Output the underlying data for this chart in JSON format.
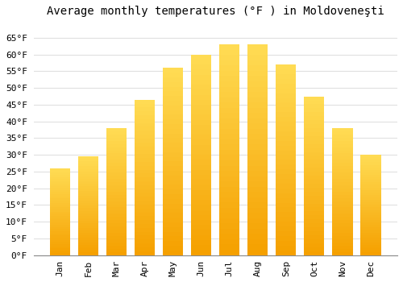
{
  "months": [
    "Jan",
    "Feb",
    "Mar",
    "Apr",
    "May",
    "Jun",
    "Jul",
    "Aug",
    "Sep",
    "Oct",
    "Nov",
    "Dec"
  ],
  "temperatures": [
    26,
    29.5,
    38,
    46.5,
    56,
    60,
    63,
    63,
    57,
    47.5,
    38,
    30
  ],
  "bar_color_top": "#FFDD88",
  "bar_color_mid": "#FFBB22",
  "bar_color_bot": "#F5A000",
  "title": "Average monthly temperatures (°F ) in Moldoveneşti",
  "ylim": [
    0,
    70
  ],
  "yticks": [
    0,
    5,
    10,
    15,
    20,
    25,
    30,
    35,
    40,
    45,
    50,
    55,
    60,
    65
  ],
  "background_color": "#ffffff",
  "grid_color": "#e0e0e0",
  "title_fontsize": 10,
  "tick_fontsize": 8,
  "font_family": "monospace"
}
